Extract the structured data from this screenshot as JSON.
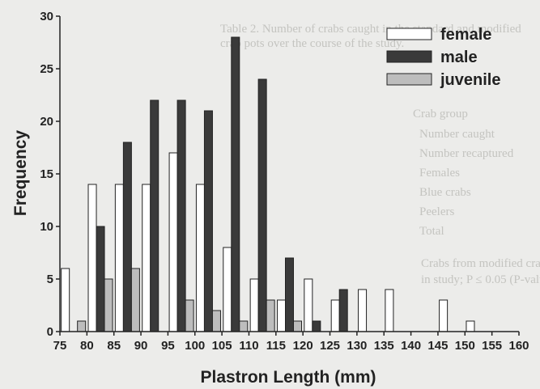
{
  "chart_data": {
    "type": "bar",
    "categories": [
      75,
      80,
      85,
      90,
      95,
      100,
      105,
      110,
      115,
      120,
      125,
      130,
      135,
      140,
      145,
      150,
      155,
      160
    ],
    "series": [
      {
        "name": "female",
        "color": "#ffffff",
        "values": [
          6,
          14,
          14,
          14,
          17,
          14,
          8,
          5,
          3,
          5,
          3,
          4,
          4,
          0,
          3,
          1,
          0,
          0
        ]
      },
      {
        "name": "male",
        "color": "#3a3a3a",
        "values": [
          0,
          10,
          18,
          22,
          22,
          21,
          28,
          24,
          7,
          1,
          4,
          0,
          0,
          0,
          0,
          0,
          0,
          0
        ]
      },
      {
        "name": "juvenile",
        "color": "#bdbdbd",
        "values": [
          1,
          5,
          6,
          0,
          3,
          2,
          1,
          3,
          1,
          0,
          0,
          0,
          0,
          0,
          0,
          0,
          0,
          0
        ]
      }
    ],
    "xlabel": "Plastron Length (mm)",
    "ylabel": "Frequency",
    "ylim": [
      0,
      30
    ],
    "yticks": [
      0,
      5,
      10,
      15,
      20,
      25,
      30
    ],
    "legend": "top-right",
    "grid": false
  }
}
